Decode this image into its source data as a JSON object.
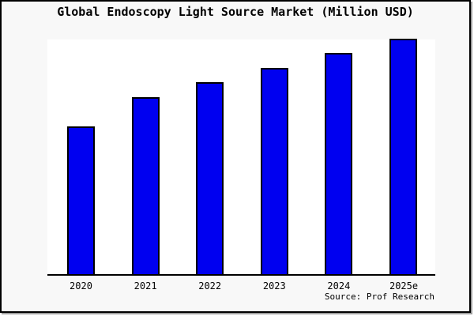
{
  "chart": {
    "title": "Global Endoscopy Light Source Market (Million USD)",
    "source": "Source: Prof Research"
  },
  "chart_data": {
    "type": "bar",
    "title": "Global Endoscopy Light Source Market (Million USD)",
    "categories": [
      "2020",
      "2021",
      "2022",
      "2023",
      "2024",
      "2025e"
    ],
    "values": [
      187,
      224,
      243,
      261,
      280,
      298
    ],
    "values_note": "relative bar heights in plot pixels; no y-axis tick labels are shown in the chart",
    "xlabel": "",
    "ylabel": "",
    "ylim": [
      0,
      299
    ],
    "grid": false,
    "legend": false,
    "y_axis_visible": false,
    "bar_fill_color": "#0000f0",
    "bar_border_color": "#000000",
    "plot_background": "#ffffff",
    "page_background": "#f8f8f8",
    "source": "Source: Prof Research"
  }
}
